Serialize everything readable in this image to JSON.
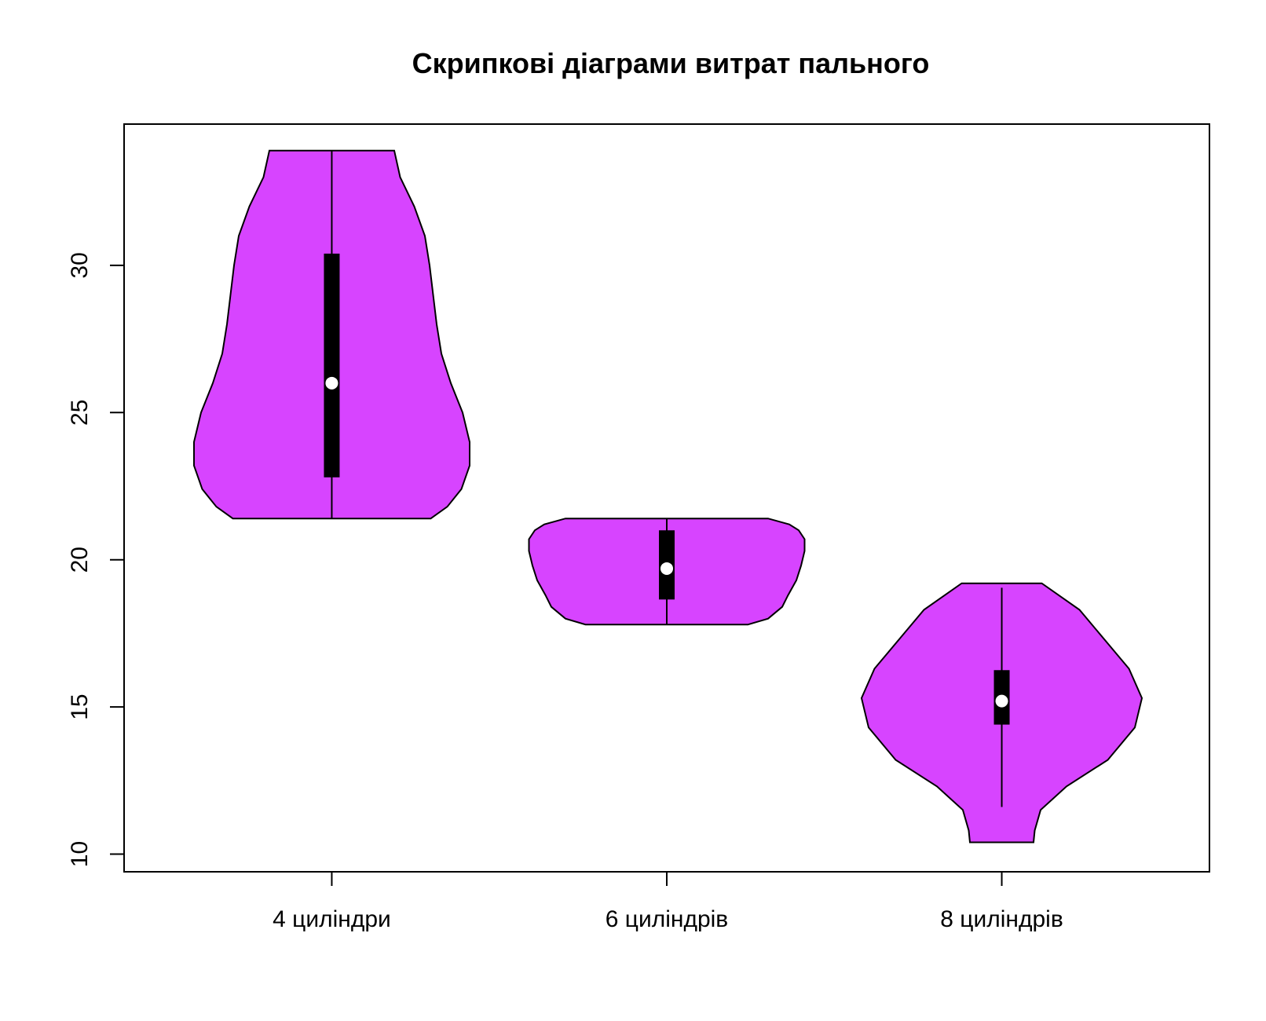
{
  "chart_data": {
    "type": "violin",
    "title": "Скрипкові діаграми витрат пального",
    "xlabel": "",
    "ylabel": "",
    "ylim": [
      9.4,
      34.8
    ],
    "y_ticks": [
      10,
      15,
      20,
      25,
      30
    ],
    "fill_color": "#D744FF",
    "categories": [
      "4 цилiндри",
      "6 цилiндрiв",
      "8 цилiндрiв"
    ],
    "series": [
      {
        "min": 21.4,
        "q1": 22.8,
        "median": 26.0,
        "q3": 30.4,
        "max": 33.9,
        "whisker_low": 21.4,
        "whisker_high": 33.9,
        "density": [
          [
            21.4,
            0.84
          ],
          [
            21.8,
            0.98
          ],
          [
            22.4,
            1.1
          ],
          [
            23.2,
            1.17
          ],
          [
            24.0,
            1.17
          ],
          [
            25.0,
            1.11
          ],
          [
            26.0,
            1.01
          ],
          [
            27.0,
            0.93
          ],
          [
            28.0,
            0.89
          ],
          [
            29.0,
            0.86
          ],
          [
            30.0,
            0.83
          ],
          [
            31.0,
            0.79
          ],
          [
            32.0,
            0.7
          ],
          [
            33.0,
            0.58
          ],
          [
            33.9,
            0.53
          ]
        ]
      },
      {
        "min": 17.8,
        "q1": 18.65,
        "median": 19.7,
        "q3": 21.0,
        "max": 21.4,
        "whisker_low": 17.8,
        "whisker_high": 21.4,
        "density": [
          [
            17.8,
            0.69
          ],
          [
            18.0,
            0.86
          ],
          [
            18.4,
            0.98
          ],
          [
            18.8,
            1.03
          ],
          [
            19.3,
            1.1
          ],
          [
            19.8,
            1.14
          ],
          [
            20.3,
            1.17
          ],
          [
            20.7,
            1.17
          ],
          [
            21.0,
            1.12
          ],
          [
            21.2,
            1.04
          ],
          [
            21.4,
            0.86
          ]
        ]
      },
      {
        "min": 10.4,
        "q1": 14.4,
        "median": 15.2,
        "q3": 16.25,
        "max": 19.2,
        "whisker_low": 11.6,
        "whisker_high": 19.05,
        "density": [
          [
            10.4,
            0.27
          ],
          [
            10.8,
            0.28
          ],
          [
            11.5,
            0.33
          ],
          [
            12.3,
            0.55
          ],
          [
            13.2,
            0.9
          ],
          [
            14.3,
            1.13
          ],
          [
            15.3,
            1.19
          ],
          [
            16.3,
            1.08
          ],
          [
            17.3,
            0.87
          ],
          [
            18.3,
            0.66
          ],
          [
            19.2,
            0.34
          ]
        ]
      }
    ]
  }
}
